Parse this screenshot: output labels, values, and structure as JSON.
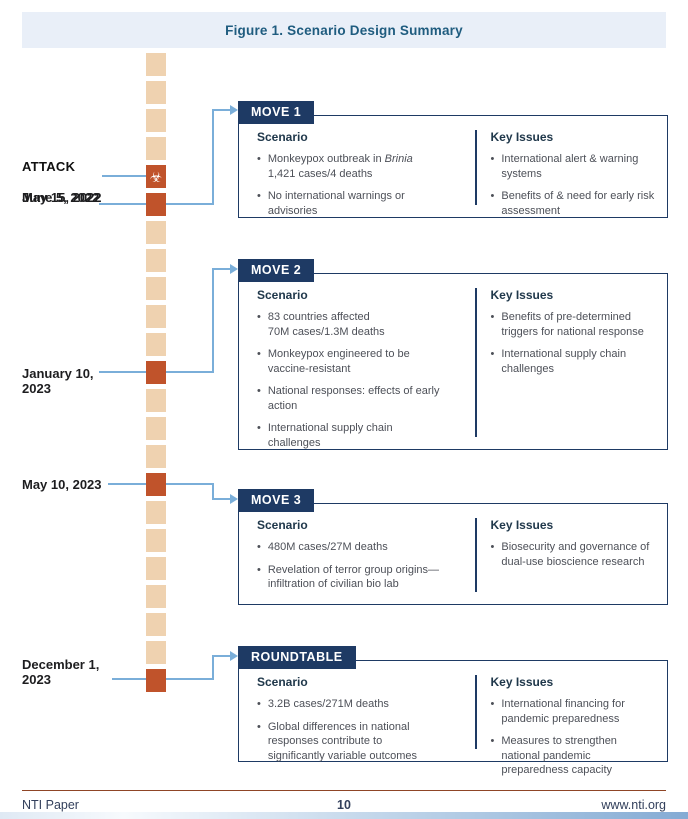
{
  "figure_title": "Figure 1. Scenario Design Summary",
  "colors": {
    "navy": "#1e3a64",
    "title_blue": "#1f5c7f",
    "band_bg": "#e9eff8",
    "connector_blue": "#7aaed9",
    "timeline_beige": "#efd2b0",
    "timeline_orange": "#c0532b",
    "footer_rule": "#8f4526"
  },
  "timeline": {
    "square_count": 23,
    "orange_indices": [
      4,
      5,
      11,
      15,
      22
    ],
    "biohazard_index": 4,
    "biohazard_glyph": "☣",
    "labels": {
      "attack_title": "ATTACK",
      "attack_date": "May 15, 2022",
      "june5": "June 5, 2022",
      "jan10": "January 10,\n2023",
      "may10": "May 10, 2023",
      "dec1": "December 1,\n2023"
    }
  },
  "moves": [
    {
      "header": "MOVE 1",
      "scenario_title": "Scenario",
      "key_issues_title": "Key Issues",
      "scenario": [
        [
          "Monkeypox outbreak in ",
          {
            "i": "Brinia"
          },
          "\n1,421 cases/4 deaths"
        ],
        "No international warnings or advisories"
      ],
      "key_issues": [
        "International alert & warning systems",
        "Benefits of & need for early risk assessment"
      ]
    },
    {
      "header": "MOVE 2",
      "scenario_title": "Scenario",
      "key_issues_title": "Key Issues",
      "scenario": [
        "83 countries affected\n70M cases/1.3M deaths",
        "Monkeypox engineered to be vaccine-resistant",
        "National responses: effects of early action",
        "International supply chain challenges"
      ],
      "key_issues": [
        "Benefits of pre-determined triggers for national response",
        "International supply chain challenges"
      ]
    },
    {
      "header": "MOVE 3",
      "scenario_title": "Scenario",
      "key_issues_title": "Key Issues",
      "scenario": [
        "480M cases/27M deaths",
        "Revelation of terror group origins—infiltration of civilian bio lab"
      ],
      "key_issues": [
        "Biosecurity and governance of dual-use bioscience research"
      ]
    },
    {
      "header": "ROUNDTABLE",
      "scenario_title": "Scenario",
      "key_issues_title": "Key Issues",
      "scenario": [
        "3.2B cases/271M deaths",
        "Global differences in national responses contribute to significantly variable outcomes"
      ],
      "key_issues": [
        "International financing for pandemic preparedness",
        "Measures to strengthen national pandemic preparedness capacity"
      ]
    }
  ],
  "footer": {
    "left": "NTI Paper",
    "page_number": "10",
    "right": "www.nti.org"
  }
}
